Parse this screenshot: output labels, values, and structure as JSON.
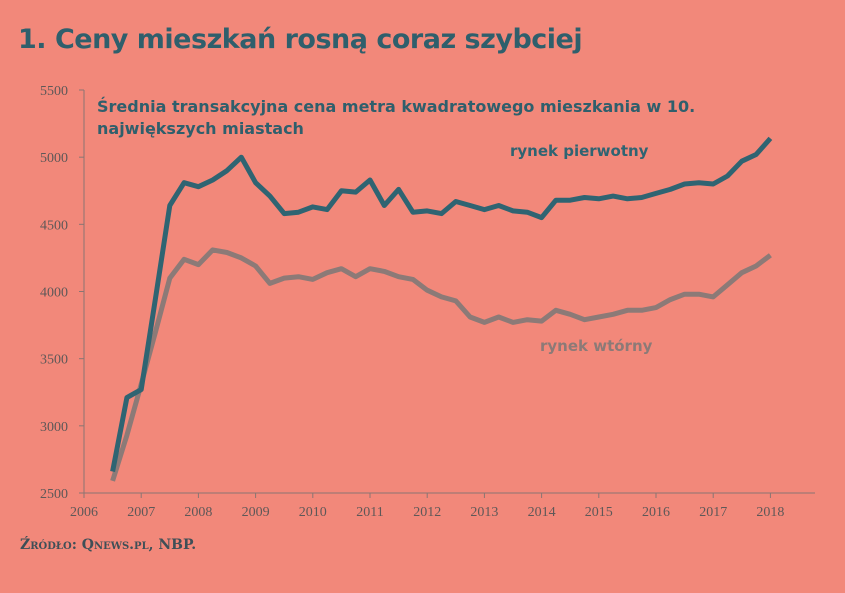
{
  "title": "1. Ceny mieszkań rosną coraz szybciej",
  "source": "Źródło: Qnews.pl, NBP.",
  "chart_data": {
    "type": "line",
    "title": "Średnia transakcyjna cena metra kwadratowego mieszkania w 10. największych miastach",
    "title_lines": [
      "Średnia transakcyjna cena metra kwadratowego mieszkania w 10.",
      "największych miastach"
    ],
    "xlabel": "",
    "ylabel": "",
    "xlim": [
      2006,
      2018.8
    ],
    "ylim": [
      2500,
      5500
    ],
    "x_ticks": [
      "2006",
      "2007",
      "2008",
      "2009",
      "2010",
      "2011",
      "2012",
      "2013",
      "2014",
      "2015",
      "2016",
      "2017",
      "2018"
    ],
    "y_ticks": [
      "2500",
      "3000",
      "3500",
      "4000",
      "4500",
      "5000",
      "5500"
    ],
    "grid": false,
    "x": [
      2006.5,
      2006.75,
      2007,
      2007.25,
      2007.5,
      2007.75,
      2008,
      2008.25,
      2008.5,
      2008.75,
      2009,
      2009.25,
      2009.5,
      2009.75,
      2010,
      2010.25,
      2010.5,
      2010.75,
      2011,
      2011.25,
      2011.5,
      2011.75,
      2012,
      2012.25,
      2012.5,
      2012.75,
      2013,
      2013.25,
      2013.5,
      2013.75,
      2014,
      2014.25,
      2014.5,
      2014.75,
      2015,
      2015.25,
      2015.5,
      2015.75,
      2016,
      2016.25,
      2016.5,
      2016.75,
      2017,
      2017.25,
      2017.5,
      2017.75,
      2018
    ],
    "series": [
      {
        "name": "rynek pierwotny",
        "color": "#2f6472",
        "values": [
          2660,
          3210,
          3270,
          3950,
          4640,
          4810,
          4780,
          4830,
          4900,
          5000,
          4810,
          4710,
          4580,
          4590,
          4630,
          4610,
          4750,
          4740,
          4830,
          4640,
          4760,
          4590,
          4600,
          4580,
          4670,
          4640,
          4610,
          4640,
          4600,
          4590,
          4550,
          4680,
          4680,
          4700,
          4690,
          4710,
          4690,
          4700,
          4730,
          4760,
          4800,
          4810,
          4800,
          4860,
          4970,
          5020,
          5140
        ]
      },
      {
        "name": "rynek wtórny",
        "color": "#8c7a77",
        "values": [
          2590,
          2930,
          3310,
          3700,
          4100,
          4240,
          4200,
          4310,
          4290,
          4250,
          4190,
          4060,
          4100,
          4110,
          4090,
          4140,
          4170,
          4110,
          4170,
          4150,
          4110,
          4090,
          4010,
          3960,
          3930,
          3810,
          3770,
          3810,
          3770,
          3790,
          3780,
          3860,
          3830,
          3790,
          3810,
          3830,
          3860,
          3860,
          3880,
          3940,
          3980,
          3980,
          3960,
          4050,
          4140,
          4190,
          4270
        ]
      }
    ]
  }
}
